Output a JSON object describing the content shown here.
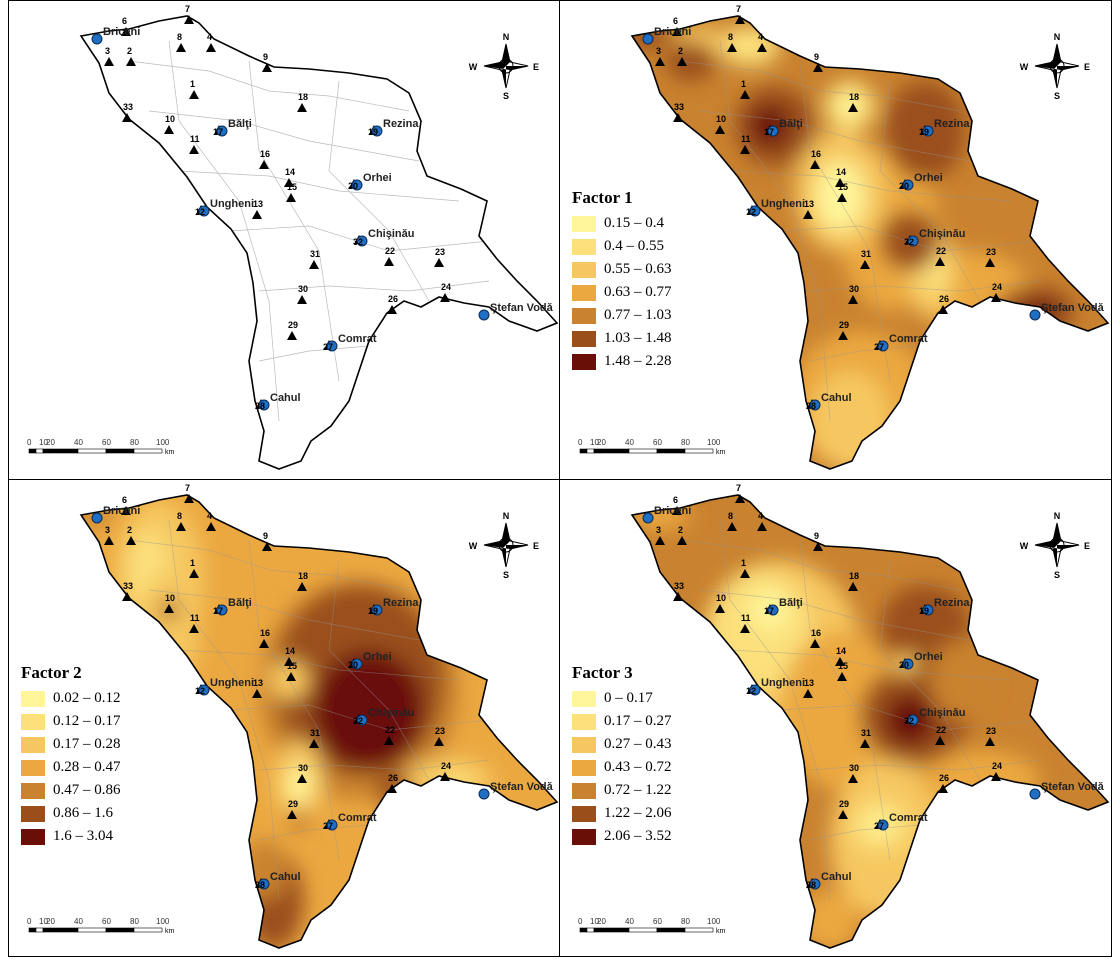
{
  "figure": {
    "panels": [
      {
        "id": "sites",
        "title": null,
        "legend": null
      },
      {
        "id": "factor1",
        "title": "Factor 1",
        "legend": [
          "0.15 – 0.4",
          "0.4 – 0.55",
          "0.55 – 0.63",
          "0.63 – 0.77",
          "0.77 – 1.03",
          "1.03 – 1.48",
          "1.48 – 2.28"
        ]
      },
      {
        "id": "factor2",
        "title": "Factor 2",
        "legend": [
          "0.02 – 0.12",
          "0.12 – 0.17",
          "0.17 – 0.28",
          "0.28 – 0.47",
          "0.47 – 0.86",
          "0.86 – 1.6",
          "1.6 – 3.04"
        ]
      },
      {
        "id": "factor3",
        "title": "Factor 3",
        "legend": [
          "0 – 0.17",
          "0.17 – 0.27",
          "0.27 – 0.43",
          "0.43 – 0.72",
          "0.72 – 1.22",
          "1.22 – 2.06",
          "2.06 – 3.52"
        ]
      }
    ],
    "class_colors": [
      "#fff59a",
      "#fbe07c",
      "#f6c760",
      "#eba841",
      "#c9822f",
      "#9a4f1a",
      "#6a0f08"
    ],
    "site_numbers": [
      "1",
      "2",
      "3",
      "4",
      "6",
      "7",
      "8",
      "9",
      "10",
      "11",
      "13",
      "14",
      "15",
      "16",
      "18",
      "22",
      "23",
      "24",
      "26",
      "29",
      "30",
      "31",
      "33"
    ],
    "cities": [
      {
        "name": "Briceni",
        "num": ""
      },
      {
        "name": "Bălţi",
        "num": "17"
      },
      {
        "name": "Rezina",
        "num": "19"
      },
      {
        "name": "Orhei",
        "num": "20"
      },
      {
        "name": "Ungheni",
        "num": "12"
      },
      {
        "name": "Chişinău",
        "num": "32"
      },
      {
        "name": "Ştefan Vodă",
        "num": ""
      },
      {
        "name": "Comrat",
        "num": "27"
      },
      {
        "name": "Cahul",
        "num": "28"
      }
    ],
    "compass": {
      "n": "N",
      "s": "S",
      "e": "E",
      "w": "W"
    },
    "scale": {
      "ticks": [
        "0",
        "10",
        "20",
        "40",
        "60",
        "80",
        "100"
      ],
      "unit": "km"
    }
  }
}
